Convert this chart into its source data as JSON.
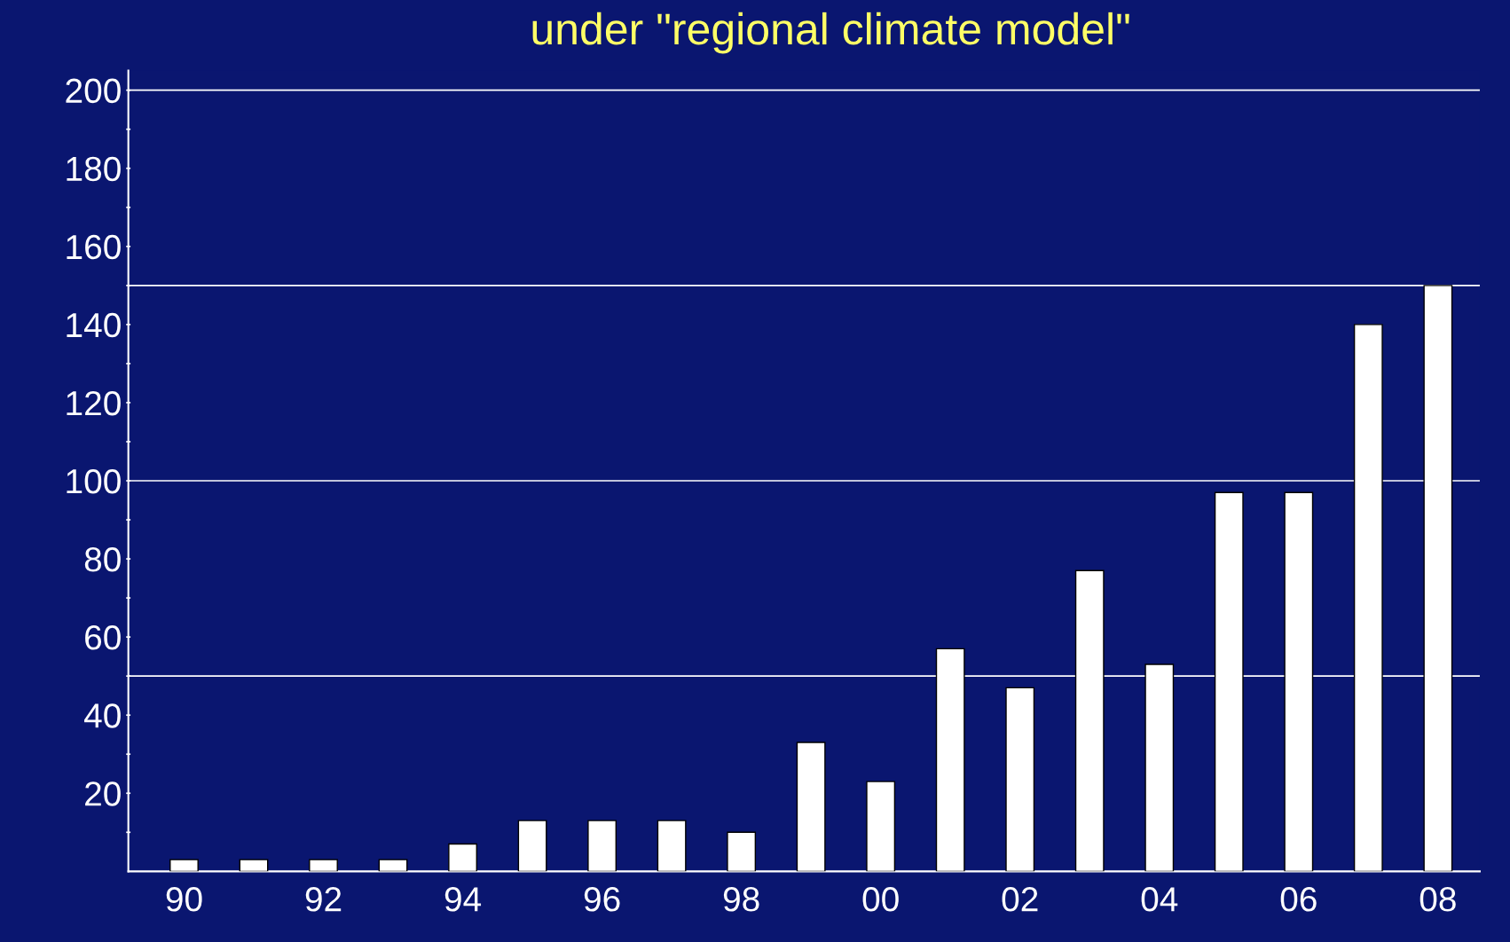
{
  "chart_data": {
    "type": "bar",
    "title": "under \"regional climate model\"",
    "categories": [
      "90",
      null,
      "92",
      null,
      "94",
      null,
      "96",
      null,
      "98",
      null,
      "00",
      null,
      "02",
      null,
      "04",
      null,
      "06",
      null,
      "08"
    ],
    "values": [
      3,
      3,
      3,
      3,
      7,
      13,
      13,
      13,
      10,
      33,
      23,
      57,
      47,
      77,
      53,
      97,
      97,
      140,
      150
    ],
    "color": "#ffffff",
    "ylim": [
      0,
      205
    ],
    "yticks": [
      {
        "value": 10,
        "label": null
      },
      20,
      {
        "value": 30,
        "label": null
      },
      40,
      {
        "value": 50,
        "label": null
      },
      60,
      {
        "value": 70,
        "label": null
      },
      80,
      {
        "value": 90,
        "label": null
      },
      100,
      {
        "value": 110,
        "label": null
      },
      120,
      {
        "value": 130,
        "label": null
      },
      140,
      {
        "value": 150,
        "label": null
      },
      160,
      {
        "value": 170,
        "label": null
      },
      180,
      {
        "value": 190,
        "label": null
      },
      200
    ],
    "ref_lines": [
      {
        "axis": "y",
        "value": 50,
        "color": "#ffffff"
      },
      {
        "axis": "y",
        "value": 100,
        "color": "#ffffff"
      },
      {
        "axis": "y",
        "value": 150,
        "color": "#ffffff"
      },
      {
        "axis": "y",
        "value": 200,
        "color": "#ffffff"
      }
    ],
    "grid": false,
    "legend": false
  }
}
